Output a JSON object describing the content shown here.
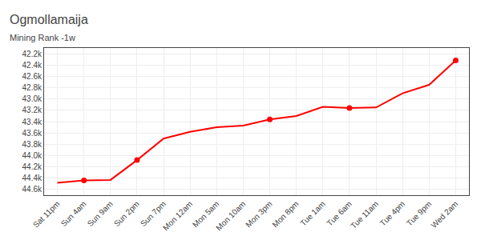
{
  "chart_data": {
    "type": "line",
    "title": "Ogmollamaija",
    "subtitle": "Mining Rank -1w",
    "categories": [
      "Sat 11pm",
      "Sun 4am",
      "Sun 9am",
      "Sun 2pm",
      "Sun 7pm",
      "Mon 12am",
      "Mon 5am",
      "Mon 10am",
      "Mon 3pm",
      "Mon 8pm",
      "Tue 1am",
      "Tue 6am",
      "Tue 11am",
      "Tue 4pm",
      "Tue 9pm",
      "Wed 2am"
    ],
    "series": [
      {
        "type": "line",
        "color": "#ff0000",
        "values": [
          44480,
          44440,
          44430,
          44080,
          43700,
          43580,
          43500,
          43470,
          43360,
          43300,
          43140,
          43160,
          43150,
          42900,
          42750,
          42320
        ]
      },
      {
        "type": "scatter",
        "marker": "circle",
        "color": "#ff0000",
        "values": [
          null,
          44440,
          null,
          44080,
          null,
          null,
          null,
          null,
          43360,
          null,
          null,
          43160,
          null,
          null,
          null,
          42320
        ]
      }
    ],
    "ylim": [
      44700,
      42100
    ],
    "yticks": [
      {
        "value": 42200,
        "label": "42.2k"
      },
      {
        "value": 42400,
        "label": "42.4k"
      },
      {
        "value": 42600,
        "label": "42.6k"
      },
      {
        "value": 42800,
        "label": "42.8k"
      },
      {
        "value": 43000,
        "label": "43.0k"
      },
      {
        "value": 43200,
        "label": "43.2k"
      },
      {
        "value": 43400,
        "label": "43.4k"
      },
      {
        "value": 43600,
        "label": "43.6k"
      },
      {
        "value": 43800,
        "label": "43.8k"
      },
      {
        "value": 44000,
        "label": "44.0k"
      },
      {
        "value": 44200,
        "label": "44.2k"
      },
      {
        "value": 44400,
        "label": "44.4k"
      },
      {
        "value": 44600,
        "label": "44.6k"
      }
    ],
    "grid": true
  }
}
